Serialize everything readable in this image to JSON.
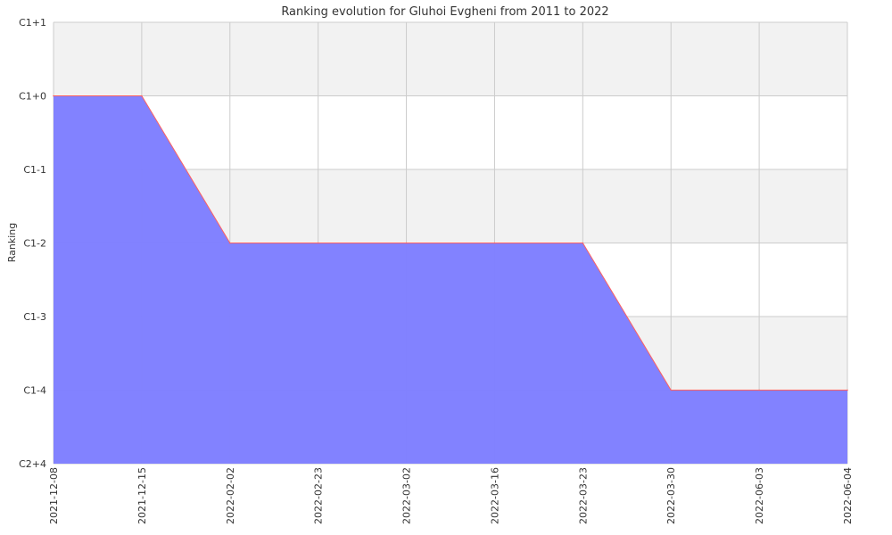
{
  "chart_data": {
    "type": "area",
    "title": "Ranking evolution for Gluhoi Evgheni from 2011 to 2022",
    "xlabel": "",
    "ylabel": "Ranking",
    "x": [
      "2021-12-08",
      "2021-12-15",
      "2022-02-02",
      "2022-02-23",
      "2022-03-02",
      "2022-03-16",
      "2022-03-23",
      "2022-03-30",
      "2022-06-03",
      "2022-06-04"
    ],
    "y_ticks": [
      "C2+4",
      "C1-4",
      "C1-3",
      "C1-2",
      "C1-1",
      "C1+0",
      "C1+1"
    ],
    "series": [
      {
        "values": [
          "C1+0",
          "C1+0",
          "C1-2",
          "C1-2",
          "C1-2",
          "C1-2",
          "C1-2",
          "C1-4",
          "C1-4",
          "C1-4"
        ]
      }
    ],
    "grid": true,
    "colors": {
      "fill": "#8080ff",
      "line": "#ff6060",
      "band": "#f2f2f2",
      "grid": "#cccccc"
    }
  }
}
